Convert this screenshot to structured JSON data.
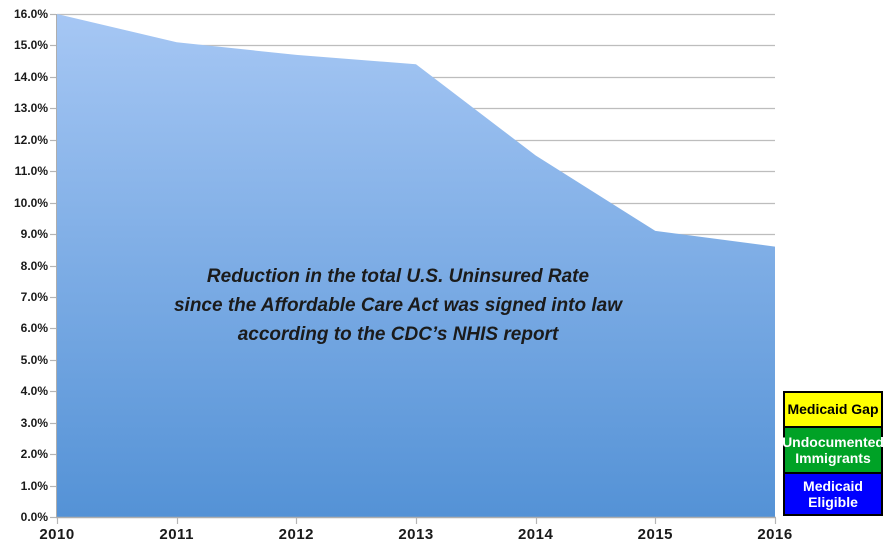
{
  "chart_data": {
    "type": "area",
    "x_labels": [
      "2010",
      "2011",
      "2012",
      "2013",
      "2014",
      "2015",
      "2016"
    ],
    "series": [
      {
        "name": "U.S. Uninsured Rate (%)",
        "values": [
          16.0,
          15.1,
          14.7,
          14.4,
          11.5,
          9.1,
          8.6
        ]
      }
    ],
    "annotation": "Reduction in the total U.S. Uninsured Rate\nsince the Affordable Care Act was signed into law\naccording to the CDC’s NHIS report",
    "ylim": [
      0,
      16
    ],
    "ytick_labels": [
      "0.0%",
      "1.0%",
      "2.0%",
      "3.0%",
      "4.0%",
      "5.0%",
      "6.0%",
      "7.0%",
      "8.0%",
      "9.0%",
      "10.0%",
      "11.0%",
      "12.0%",
      "13.0%",
      "14.0%",
      "15.0%",
      "16.0%"
    ],
    "grid": true,
    "legend_position": "bottom-right",
    "colors": {
      "area_top": "#a6c7f4",
      "area_bottom": "#5492d6",
      "gridline": "#bdbdbd",
      "axis_line": "#aeaeae",
      "tick": "#b5b5b5",
      "annotation_text": "#1b1b1b",
      "axis_label_text": "#1a1a1a"
    },
    "legend": {
      "items": [
        {
          "label": "Medicaid Gap",
          "bg": "#ffff00",
          "text_color": "#000000"
        },
        {
          "label": "Undocumented\nImmigrants",
          "bg": "#00a226",
          "text_color": "#ffffff"
        },
        {
          "label": "Medicaid\nEligible",
          "bg": "#0000ff",
          "text_color": "#ffffff"
        }
      ]
    }
  }
}
